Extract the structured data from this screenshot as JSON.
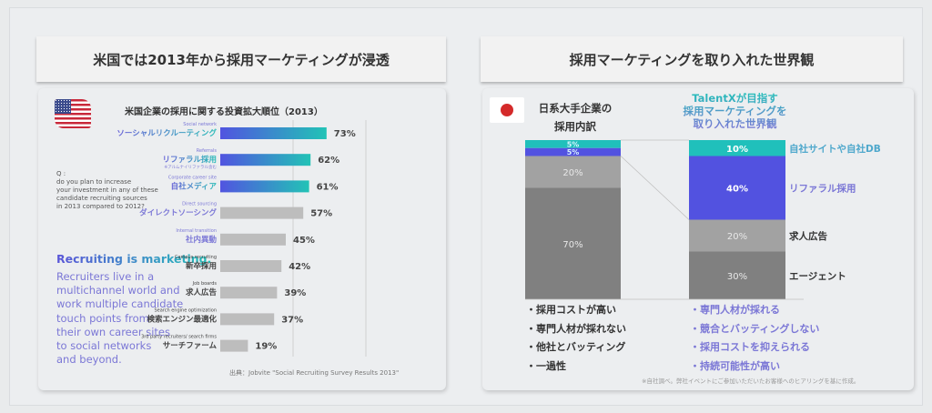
{
  "left_panel": {
    "header": "米国では2013年から採用マーケティングが浸透",
    "flag_icon": "us-flag-icon",
    "question": "Q :\ndo you plan to increase\nyour investment in any of these\ncandidate recruiting sources\nin 2013 compared to 2012?",
    "recruit_head": "Recruiting is marketing.",
    "recruit_body": "Recruiters live in a\nmultichannel world and\nwork multiple candidate\ntouch points from\ntheir own career sites\nto social networks\nand beyond.",
    "source": "出典：Jobvite \"Social Recruiting Survey Results 2013\""
  },
  "right_panel": {
    "header": "採用マーケティングを取り入れた世界観",
    "flag_icon": "jp-flag-icon",
    "jp_title": "日系大手企業の\n採用内訳",
    "tx_title": "TalentXが目指す\n採用マーケティングを\n取り入れた世界観",
    "left_bullets": [
      "・採用コストが高い",
      "・専門人材が採れない",
      "・他社とバッティング",
      "・一過性"
    ],
    "right_bullets": [
      "・専門人材が採れる",
      "・競合とバッティングしない",
      "・採用コストを抑えられる",
      "・持続可能性が高い"
    ],
    "note": "※自社調べ。弊社イベントにご参加いただいたお客様へのヒアリングを基に作成。"
  },
  "chart_data": [
    {
      "type": "bar",
      "orientation": "horizontal",
      "title": "米国企業の採用に関する投資拡大順位（2013）",
      "xlabel": "",
      "ylabel": "",
      "xlim": [
        0,
        100
      ],
      "grid": true,
      "categories": [
        {
          "en": "Social network",
          "jp": "ソーシャルリクルーティング",
          "sub": "",
          "highlight": true
        },
        {
          "en": "Referrals",
          "jp": "リファラル採用",
          "sub": "※アルムナイリファラル含む",
          "highlight": true
        },
        {
          "en": "Corporate career site",
          "jp": "自社メディア",
          "sub": "",
          "highlight": true
        },
        {
          "en": "Direct sourcing",
          "jp": "ダイレクトソーシング",
          "sub": "",
          "highlight": false
        },
        {
          "en": "Internal transition",
          "jp": "社内異動",
          "sub": "",
          "highlight": false
        },
        {
          "en": "Campus recruiting",
          "jp": "新卒採用",
          "sub": "",
          "highlight": false
        },
        {
          "en": "Job boards",
          "jp": "求人広告",
          "sub": "",
          "highlight": false
        },
        {
          "en": "Search engine optimization",
          "jp": "検索エンジン最適化",
          "sub": "",
          "highlight": false
        },
        {
          "en": "3rd party recruiters/ search firms",
          "jp": "サーチファーム",
          "sub": "",
          "highlight": false
        }
      ],
      "values": [
        73,
        62,
        61,
        57,
        45,
        42,
        39,
        37,
        19
      ],
      "value_labels": [
        "73%",
        "62%",
        "61%",
        "57%",
        "45%",
        "42%",
        "39%",
        "37%",
        "19%"
      ],
      "colors": {
        "highlight_start": "#5154e0",
        "highlight_end": "#22c3b6",
        "normal": "#bdbdbd",
        "jp_label_start": "#6a63d8",
        "jp_label_end": "#2bbdb8"
      }
    },
    {
      "type": "bar",
      "stacked": true,
      "title": "日系大手企業の採用内訳 vs TalentXが目指す世界観",
      "ylim": [
        0,
        100
      ],
      "categories": [
        "日系大手企業",
        "TalentX"
      ],
      "series": [
        {
          "name": "自社サイトや自社DB",
          "values": [
            5,
            10
          ],
          "color": "#20c0bb",
          "label_color": "#4fa8cc"
        },
        {
          "name": "リファラル採用",
          "values": [
            5,
            40
          ],
          "color": "#5252e0",
          "label_color": "#7b77d6"
        },
        {
          "name": "求人広告",
          "values": [
            20,
            20
          ],
          "color": "#a2a2a2",
          "label_color": "#333333"
        },
        {
          "name": "エージェント",
          "values": [
            70,
            30
          ],
          "color": "#808080",
          "label_color": "#333333"
        }
      ]
    }
  ]
}
